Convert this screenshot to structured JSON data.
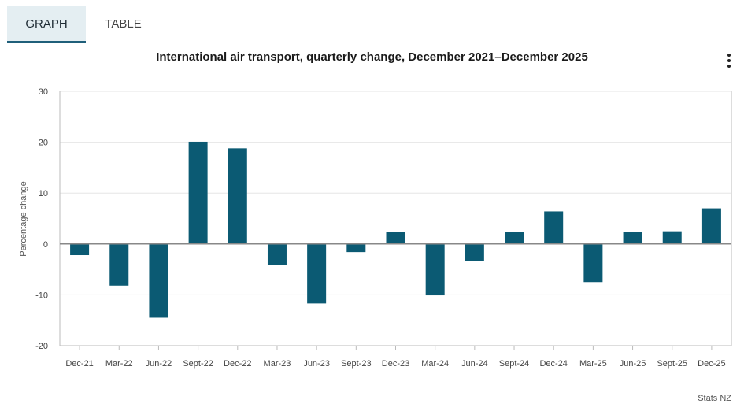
{
  "tabs": [
    {
      "label": "GRAPH",
      "active": true
    },
    {
      "label": "TABLE",
      "active": false
    }
  ],
  "menu_icon": "kebab-menu-icon",
  "credit": "Stats NZ",
  "colors": {
    "bar": "#0b5a73",
    "grid": "#e6e6e6",
    "zero_line": "#888888"
  },
  "chart_data": {
    "type": "bar",
    "title": "International air transport, quarterly change, December 2021–December 2025",
    "xlabel": "",
    "ylabel": "Percentage change",
    "ylim": [
      -20,
      30
    ],
    "yticks": [
      -20,
      -10,
      0,
      10,
      20,
      30
    ],
    "grid": true,
    "categories": [
      "Dec-21",
      "Mar-22",
      "Jun-22",
      "Sept-22",
      "Dec-22",
      "Mar-23",
      "Jun-23",
      "Sept-23",
      "Dec-23",
      "Mar-24",
      "Jun-24",
      "Sept-24",
      "Dec-24",
      "Mar-25",
      "Jun-25",
      "Sept-25",
      "Dec-25"
    ],
    "values": [
      -2.2,
      -8.2,
      -14.5,
      20.1,
      18.8,
      -4.1,
      -11.7,
      -1.6,
      2.4,
      -10.1,
      -3.4,
      2.4,
      6.4,
      -7.5,
      2.3,
      2.5,
      7.0
    ]
  }
}
